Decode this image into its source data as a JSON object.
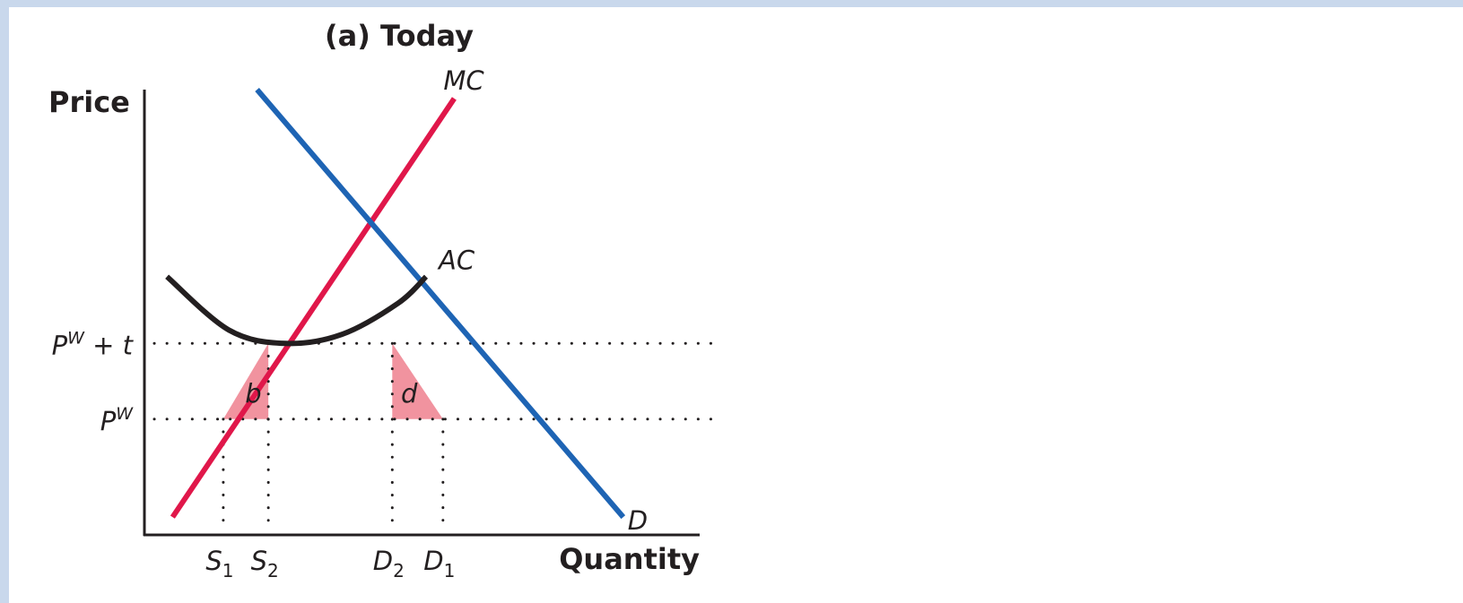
{
  "chart_data": {
    "type": "line",
    "title": "(a) Today",
    "xlabel": "Quantity",
    "ylabel": "Price",
    "grid": false,
    "legend": "none",
    "curves": [
      {
        "name": "MC",
        "kind": "line",
        "color": "#e0174a",
        "points": [
          [
            0.5,
            0.4
          ],
          [
            5.5,
            9.8
          ]
        ]
      },
      {
        "name": "D",
        "kind": "line",
        "color": "#1e64b4",
        "points": [
          [
            2.0,
            10.0
          ],
          [
            8.5,
            0.4
          ]
        ]
      },
      {
        "name": "AC",
        "kind": "curve",
        "color": "#231f20",
        "points": [
          [
            0.4,
            5.8
          ],
          [
            1.5,
            4.6
          ],
          [
            2.5,
            4.3
          ],
          [
            3.5,
            4.5
          ],
          [
            4.5,
            5.2
          ],
          [
            5.0,
            5.8
          ]
        ]
      }
    ],
    "price_levels": [
      {
        "label_main": "P",
        "label_sup": "W",
        "label_rest": " + t",
        "y": 4.3
      },
      {
        "label_main": "P",
        "label_sup": "W",
        "label_rest": "",
        "y": 2.6
      }
    ],
    "quantity_marks": [
      {
        "label_main": "S",
        "label_sub": "1",
        "x": 1.4
      },
      {
        "label_main": "S",
        "label_sub": "2",
        "x": 2.2
      },
      {
        "label_main": "D",
        "label_sub": "2",
        "x": 4.4
      },
      {
        "label_main": "D",
        "label_sub": "1",
        "x": 5.3
      }
    ],
    "shaded_areas": [
      {
        "label": "b",
        "color": "#f1939f",
        "points": [
          [
            1.4,
            2.6
          ],
          [
            2.2,
            2.6
          ],
          [
            2.2,
            4.3
          ]
        ]
      },
      {
        "label": "d",
        "color": "#f1939f",
        "points": [
          [
            4.4,
            2.6
          ],
          [
            5.3,
            2.6
          ],
          [
            4.4,
            4.3
          ]
        ]
      }
    ],
    "xlim": [
      0,
      10
    ],
    "ylim": [
      0,
      10
    ]
  }
}
